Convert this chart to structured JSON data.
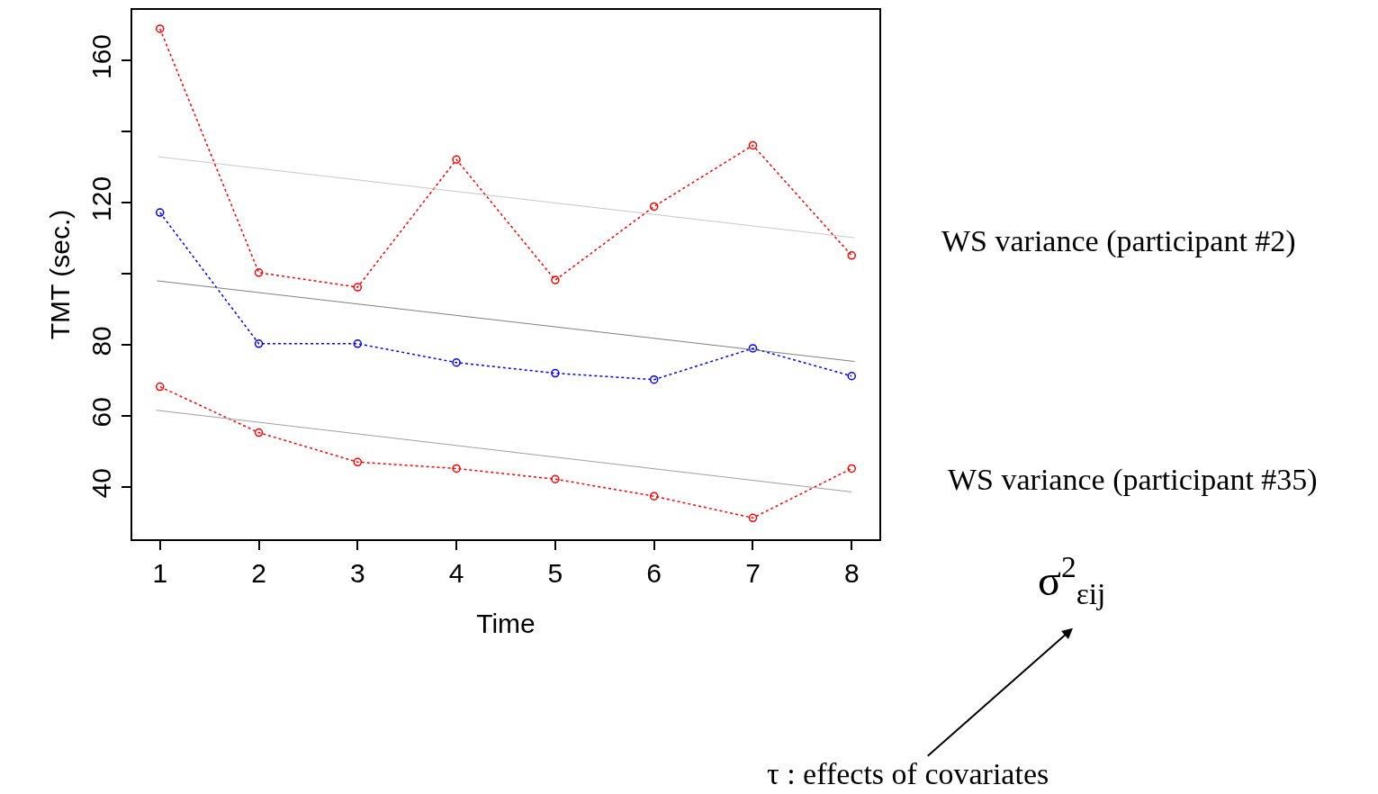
{
  "chart_data": {
    "type": "line",
    "xlabel": "Time",
    "ylabel": "TMT (sec.)",
    "x": [
      1,
      2,
      3,
      4,
      5,
      6,
      7,
      8
    ],
    "xlim": [
      0.72,
      8.28
    ],
    "xticks": [
      1,
      2,
      3,
      4,
      5,
      6,
      7,
      8
    ],
    "ylim": [
      25.4,
      174.3
    ],
    "yticks": [
      40,
      60,
      80,
      {
        "value": 100,
        "label": null
      },
      120,
      {
        "value": 140,
        "label": null
      },
      160
    ],
    "series": [
      {
        "color": "#ff0000",
        "marker": "circle",
        "line_style": "dotted",
        "values": [
          169.0,
          100.4,
          96.3,
          132.2,
          98.3,
          119.0,
          136.2,
          105.2
        ]
      },
      {
        "color": "#0000ff",
        "marker": "circle",
        "line_style": "dotted",
        "values": [
          117.3,
          80.4,
          80.4,
          75.1,
          72.1,
          70.3,
          79.1,
          71.3
        ]
      },
      {
        "color": "#ff0000",
        "marker": "circle",
        "line_style": "dotted",
        "values": [
          68.3,
          55.4,
          47.1,
          45.3,
          42.3,
          37.5,
          31.4,
          45.3
        ]
      },
      {
        "color": "#c8c8c8",
        "marker": "none",
        "line_style": "solid",
        "x": [
          0.98,
          8.03
        ],
        "values": [
          133.0,
          110.2
        ]
      },
      {
        "color": "#808080",
        "marker": "none",
        "line_style": "solid",
        "x": [
          0.97,
          8.03
        ],
        "values": [
          98.1,
          75.4
        ]
      },
      {
        "color": "#a0a0a0",
        "marker": "none",
        "line_style": "solid",
        "x": [
          0.96,
          8.0
        ],
        "values": [
          61.7,
          38.7
        ]
      }
    ],
    "annotations": [
      "WS variance (participant #2)",
      "WS variance (participant #35)",
      "σ$^{2}$$_{εij}$",
      "τ : effects of covariates"
    ]
  }
}
